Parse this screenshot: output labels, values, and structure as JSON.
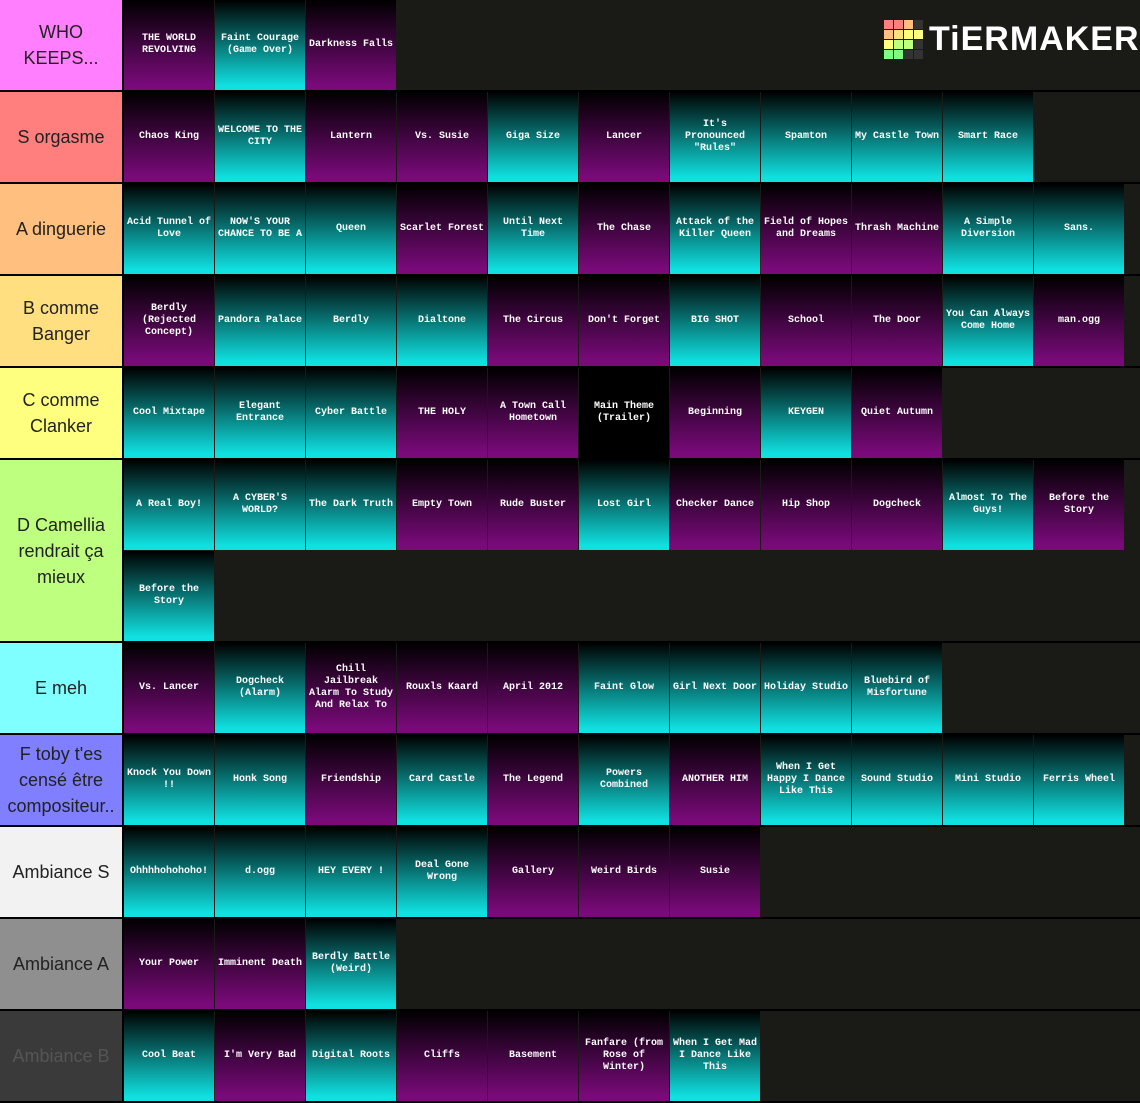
{
  "logo": "TiERMAKER",
  "tiers": [
    {
      "label": "WHO KEEPS...",
      "color": "#ff7fff",
      "items": [
        {
          "name": "THE WORLD REVOLVING",
          "color": "#7a0a7a"
        },
        {
          "name": "Faint Courage (Game Over)",
          "color": "#10e0e0"
        },
        {
          "name": "Darkness Falls",
          "color": "#7a0a7a"
        }
      ]
    },
    {
      "label": "S orgasme",
      "color": "#ff7f7f",
      "items": [
        {
          "name": "Chaos King",
          "color": "#7a0a7a"
        },
        {
          "name": "WELCOME TO THE CITY",
          "color": "#10e0e0"
        },
        {
          "name": "Lantern",
          "color": "#7a0a7a"
        },
        {
          "name": "Vs. Susie",
          "color": "#7a0a7a"
        },
        {
          "name": "Giga Size",
          "color": "#10e0e0"
        },
        {
          "name": "Lancer",
          "color": "#7a0a7a"
        },
        {
          "name": "It's Pronounced \"Rules\"",
          "color": "#10e0e0"
        },
        {
          "name": "Spamton",
          "color": "#10e0e0"
        },
        {
          "name": "My Castle Town",
          "color": "#10e0e0"
        },
        {
          "name": "Smart Race",
          "color": "#10e0e0"
        }
      ]
    },
    {
      "label": "A dinguerie",
      "color": "#ffbf7f",
      "items": [
        {
          "name": "Acid Tunnel of Love",
          "color": "#10e0e0"
        },
        {
          "name": "NOW'S YOUR CHANCE TO BE A",
          "color": "#10e0e0"
        },
        {
          "name": "Queen",
          "color": "#10e0e0"
        },
        {
          "name": "Scarlet Forest",
          "color": "#7a0a7a"
        },
        {
          "name": "Until Next Time",
          "color": "#10e0e0"
        },
        {
          "name": "The Chase",
          "color": "#7a0a7a"
        },
        {
          "name": "Attack of the Killer Queen",
          "color": "#10e0e0"
        },
        {
          "name": "Field of Hopes and Dreams",
          "color": "#7a0a7a"
        },
        {
          "name": "Thrash Machine",
          "color": "#7a0a7a"
        },
        {
          "name": "A Simple Diversion",
          "color": "#10e0e0"
        },
        {
          "name": "Sans.",
          "color": "#10e0e0"
        }
      ]
    },
    {
      "label": "B comme Banger",
      "color": "#ffdf7f",
      "items": [
        {
          "name": "Berdly (Rejected Concept)",
          "color": "#7a0a7a"
        },
        {
          "name": "Pandora Palace",
          "color": "#10e0e0"
        },
        {
          "name": "Berdly",
          "color": "#10e0e0"
        },
        {
          "name": "Dialtone",
          "color": "#10e0e0"
        },
        {
          "name": "The Circus",
          "color": "#7a0a7a"
        },
        {
          "name": "Don't Forget",
          "color": "#7a0a7a"
        },
        {
          "name": "BIG SHOT",
          "color": "#10e0e0"
        },
        {
          "name": "School",
          "color": "#7a0a7a"
        },
        {
          "name": "The Door",
          "color": "#7a0a7a"
        },
        {
          "name": "You Can Always Come Home",
          "color": "#10e0e0"
        },
        {
          "name": "man.ogg",
          "color": "#7a0a7a"
        }
      ]
    },
    {
      "label": "C comme Clanker",
      "color": "#ffff7f",
      "items": [
        {
          "name": "Cool Mixtape",
          "color": "#10e0e0"
        },
        {
          "name": "Elegant Entrance",
          "color": "#10e0e0"
        },
        {
          "name": "Cyber Battle",
          "color": "#10e0e0"
        },
        {
          "name": "THE HOLY",
          "color": "#7a0a7a"
        },
        {
          "name": "A Town Call Hometown",
          "color": "#7a0a7a"
        },
        {
          "name": "Main Theme (Trailer)",
          "color": "#000000"
        },
        {
          "name": "Beginning",
          "color": "#7a0a7a"
        },
        {
          "name": "KEYGEN",
          "color": "#10e0e0"
        },
        {
          "name": "Quiet Autumn",
          "color": "#7a0a7a"
        }
      ]
    },
    {
      "label": "D Camellia rendrait ça mieux",
      "color": "#bfff7f",
      "items": [
        {
          "name": "A Real Boy!",
          "color": "#10e0e0"
        },
        {
          "name": "A CYBER'S WORLD?",
          "color": "#10e0e0"
        },
        {
          "name": "The Dark Truth",
          "color": "#10e0e0"
        },
        {
          "name": "Empty Town",
          "color": "#7a0a7a"
        },
        {
          "name": "Rude Buster",
          "color": "#7a0a7a"
        },
        {
          "name": "Lost Girl",
          "color": "#10e0e0"
        },
        {
          "name": "Checker Dance",
          "color": "#7a0a7a"
        },
        {
          "name": "Hip Shop",
          "color": "#7a0a7a"
        },
        {
          "name": "Dogcheck",
          "color": "#7a0a7a"
        },
        {
          "name": "Almost To The Guys!",
          "color": "#10e0e0"
        },
        {
          "name": "Before the Story",
          "color": "#7a0a7a"
        },
        {
          "name": "Before the Story",
          "color": "#10e0e0"
        }
      ]
    },
    {
      "label": "E meh",
      "color": "#7fffff",
      "items": [
        {
          "name": "Vs. Lancer",
          "color": "#7a0a7a"
        },
        {
          "name": "Dogcheck (Alarm)",
          "color": "#10e0e0"
        },
        {
          "name": "Chill Jailbreak Alarm To Study And Relax To",
          "color": "#7a0a7a"
        },
        {
          "name": "Rouxls Kaard",
          "color": "#7a0a7a"
        },
        {
          "name": "April 2012",
          "color": "#7a0a7a"
        },
        {
          "name": "Faint Glow",
          "color": "#10e0e0"
        },
        {
          "name": "Girl Next Door",
          "color": "#10e0e0"
        },
        {
          "name": "Holiday Studio",
          "color": "#10e0e0"
        },
        {
          "name": "Bluebird of Misfortune",
          "color": "#10e0e0"
        }
      ]
    },
    {
      "label": "F toby t'es censé être compositeur..",
      "color": "#7f7fff",
      "items": [
        {
          "name": "Knock You Down !!",
          "color": "#10e0e0"
        },
        {
          "name": "Honk Song",
          "color": "#10e0e0"
        },
        {
          "name": "Friendship",
          "color": "#7a0a7a"
        },
        {
          "name": "Card Castle",
          "color": "#10e0e0"
        },
        {
          "name": "The Legend",
          "color": "#7a0a7a"
        },
        {
          "name": "Powers Combined",
          "color": "#10e0e0"
        },
        {
          "name": "ANOTHER HIM",
          "color": "#7a0a7a"
        },
        {
          "name": "When I Get Happy I Dance Like This",
          "color": "#10e0e0"
        },
        {
          "name": "Sound Studio",
          "color": "#10e0e0"
        },
        {
          "name": "Mini Studio",
          "color": "#10e0e0"
        },
        {
          "name": "Ferris Wheel",
          "color": "#10e0e0"
        }
      ]
    },
    {
      "label": "Ambiance S",
      "color": "#f2f2f2",
      "items": [
        {
          "name": "Ohhhhohohoho!",
          "color": "#10e0e0"
        },
        {
          "name": "d.ogg",
          "color": "#10e0e0"
        },
        {
          "name": "HEY EVERY !",
          "color": "#10e0e0"
        },
        {
          "name": "Deal Gone Wrong",
          "color": "#10e0e0"
        },
        {
          "name": "Gallery",
          "color": "#7a0a7a"
        },
        {
          "name": "Weird Birds",
          "color": "#7a0a7a"
        },
        {
          "name": "Susie",
          "color": "#7a0a7a"
        }
      ]
    },
    {
      "label": "Ambiance A",
      "color": "#8f8f8f",
      "items": [
        {
          "name": "Your Power",
          "color": "#7a0a7a"
        },
        {
          "name": "Imminent Death",
          "color": "#7a0a7a"
        },
        {
          "name": "Berdly Battle (Weird)",
          "color": "#10e0e0"
        }
      ]
    },
    {
      "label": "Ambiance B",
      "color": "#3a3a3a",
      "items": [
        {
          "name": "Cool Beat",
          "color": "#10e0e0"
        },
        {
          "name": "I'm Very Bad",
          "color": "#7a0a7a"
        },
        {
          "name": "Digital Roots",
          "color": "#10e0e0"
        },
        {
          "name": "Cliffs",
          "color": "#7a0a7a"
        },
        {
          "name": "Basement",
          "color": "#7a0a7a"
        },
        {
          "name": "Fanfare (from Rose of Winter)",
          "color": "#7a0a7a"
        },
        {
          "name": "When I Get Mad I Dance Like This",
          "color": "#10e0e0"
        }
      ]
    }
  ]
}
